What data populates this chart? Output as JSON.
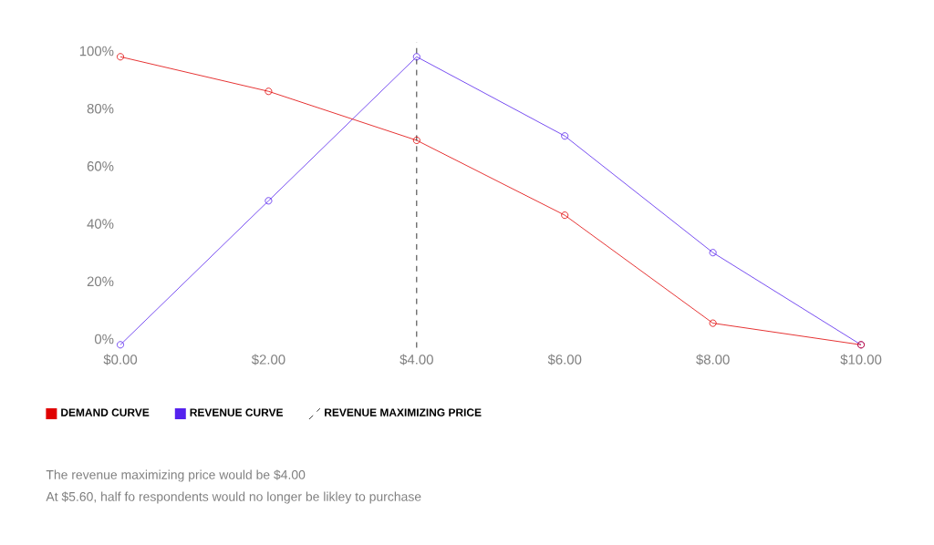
{
  "chart_data": {
    "type": "line",
    "x": [
      0,
      2,
      4,
      6,
      8,
      10
    ],
    "series": [
      {
        "name": "DEMAND CURVE",
        "color": "#e00000",
        "values": [
          98,
          86,
          69,
          43,
          5.5,
          -2
        ]
      },
      {
        "name": "REVENUE CURVE",
        "color": "#5522ee",
        "values": [
          -2,
          48,
          98,
          70.5,
          30,
          -2
        ]
      }
    ],
    "xlim": [
      0,
      10
    ],
    "ylim": [
      -3,
      103
    ],
    "xticks": [
      {
        "value": 0,
        "label": "$0.00"
      },
      {
        "value": 2,
        "label": "$2.00"
      },
      {
        "value": 4,
        "label": "$4.00"
      },
      {
        "value": 6,
        "label": "$6.00"
      },
      {
        "value": 8,
        "label": "$8.00"
      },
      {
        "value": 10,
        "label": "$10.00"
      }
    ],
    "yticks": [
      {
        "value": 0,
        "label": "0%"
      },
      {
        "value": 20,
        "label": "20%"
      },
      {
        "value": 40,
        "label": "40%"
      },
      {
        "value": 60,
        "label": "60%"
      },
      {
        "value": 80,
        "label": "80%"
      },
      {
        "value": 100,
        "label": "100%"
      }
    ],
    "ref_lines": [
      {
        "axis": "x",
        "value": 4,
        "label": "REVENUE MAXIMIZING PRICE",
        "color": "#000000",
        "line_style": "dashed"
      }
    ],
    "marker": "circle",
    "line_style": "solid",
    "grid": false,
    "legend": "bottom",
    "annotations": [
      "The revenue maximizing price would be $4.00",
      "At $5.60, half fo respondents would no longer be likley to purchase"
    ]
  }
}
